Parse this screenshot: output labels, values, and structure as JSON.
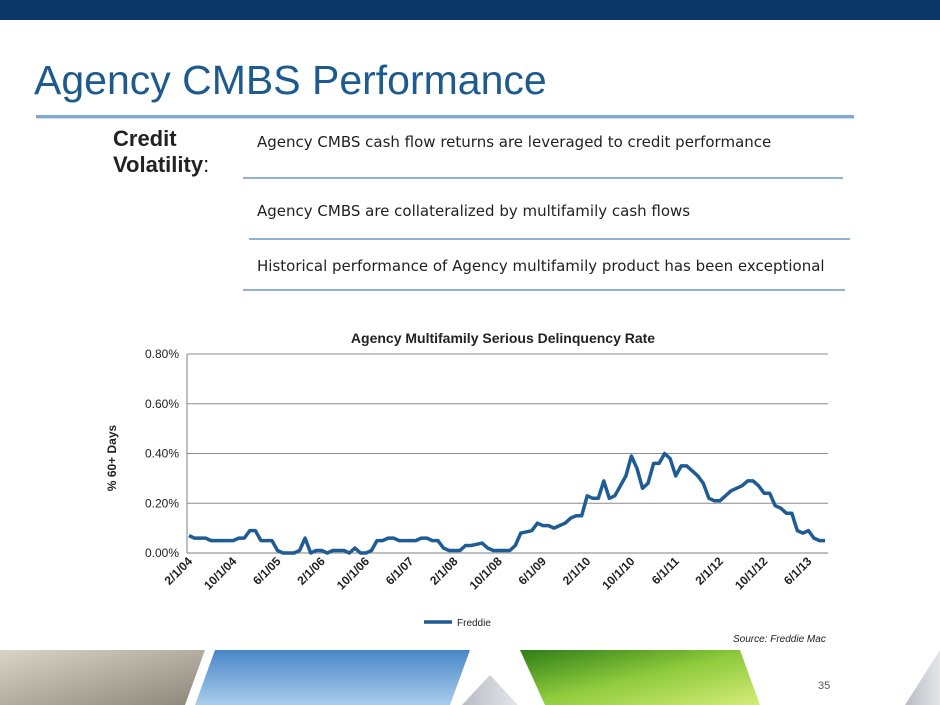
{
  "slide": {
    "title": "Agency CMBS Performance",
    "side_label_line1": "Credit",
    "side_label_line2": "Volatility",
    "side_label_colon": ":",
    "bullets": [
      "Agency CMBS cash flow returns are leveraged to credit performance",
      "Agency CMBS are collateralized by multifamily cash flows",
      "Historical performance of Agency multifamily product has been exceptional"
    ],
    "source": "Source: Freddie Mac",
    "page_number": "35",
    "colors": {
      "top_bar": "#0b3766",
      "title": "#1d5a8e",
      "rule": "#8fb2d3",
      "series": "#1f5b94"
    }
  },
  "chart_data": {
    "type": "line",
    "title": "Agency Multifamily Serious Delinquency Rate",
    "ylabel": "% 60+ Days",
    "xlabel": "",
    "ylim": [
      0,
      0.8
    ],
    "y_ticks": [
      "0.00%",
      "0.20%",
      "0.40%",
      "0.60%",
      "0.80%"
    ],
    "x_tick_labels": [
      "2/1/04",
      "10/1/04",
      "6/1/05",
      "2/1/06",
      "10/1/06",
      "6/1/07",
      "2/1/08",
      "10/1/08",
      "6/1/09",
      "2/1/10",
      "10/1/10",
      "6/1/11",
      "2/1/12",
      "10/1/12",
      "6/1/13"
    ],
    "grid": true,
    "legend": "bottom",
    "series": [
      {
        "name": "Freddie",
        "color": "#1f5b94",
        "x": [
          "2/1/04",
          "3/1/04",
          "4/1/04",
          "5/1/04",
          "6/1/04",
          "7/1/04",
          "8/1/04",
          "9/1/04",
          "10/1/04",
          "11/1/04",
          "12/1/04",
          "1/1/05",
          "2/1/05",
          "3/1/05",
          "4/1/05",
          "5/1/05",
          "6/1/05",
          "7/1/05",
          "8/1/05",
          "9/1/05",
          "10/1/05",
          "11/1/05",
          "12/1/05",
          "1/1/06",
          "2/1/06",
          "3/1/06",
          "4/1/06",
          "5/1/06",
          "6/1/06",
          "7/1/06",
          "8/1/06",
          "9/1/06",
          "10/1/06",
          "11/1/06",
          "12/1/06",
          "1/1/07",
          "2/1/07",
          "3/1/07",
          "4/1/07",
          "5/1/07",
          "6/1/07",
          "7/1/07",
          "8/1/07",
          "9/1/07",
          "10/1/07",
          "11/1/07",
          "12/1/07",
          "1/1/08",
          "2/1/08",
          "3/1/08",
          "4/1/08",
          "5/1/08",
          "6/1/08",
          "7/1/08",
          "8/1/08",
          "9/1/08",
          "10/1/08",
          "11/1/08",
          "12/1/08",
          "1/1/09",
          "2/1/09",
          "3/1/09",
          "4/1/09",
          "5/1/09",
          "6/1/09",
          "7/1/09",
          "8/1/09",
          "9/1/09",
          "10/1/09",
          "11/1/09",
          "12/1/09",
          "1/1/10",
          "2/1/10",
          "3/1/10",
          "4/1/10",
          "5/1/10",
          "6/1/10",
          "7/1/10",
          "8/1/10",
          "9/1/10",
          "10/1/10",
          "11/1/10",
          "12/1/10",
          "1/1/11",
          "2/1/11",
          "3/1/11",
          "4/1/11",
          "5/1/11",
          "6/1/11",
          "7/1/11",
          "8/1/11",
          "9/1/11",
          "10/1/11",
          "11/1/11",
          "12/1/11",
          "1/1/12",
          "2/1/12",
          "3/1/12",
          "4/1/12",
          "5/1/12",
          "6/1/12",
          "7/1/12",
          "8/1/12",
          "9/1/12",
          "10/1/12",
          "11/1/12",
          "12/1/12",
          "1/1/13",
          "2/1/13",
          "3/1/13",
          "4/1/13",
          "5/1/13",
          "6/1/13",
          "7/1/13",
          "8/1/13",
          "9/1/13"
        ],
        "values": [
          0.07,
          0.06,
          0.06,
          0.06,
          0.05,
          0.05,
          0.05,
          0.05,
          0.05,
          0.06,
          0.06,
          0.09,
          0.09,
          0.05,
          0.05,
          0.05,
          0.01,
          0.0,
          0.0,
          0.0,
          0.01,
          0.06,
          0.0,
          0.01,
          0.01,
          0.0,
          0.01,
          0.01,
          0.01,
          0.0,
          0.02,
          0.0,
          0.0,
          0.01,
          0.05,
          0.05,
          0.06,
          0.06,
          0.05,
          0.05,
          0.05,
          0.05,
          0.06,
          0.06,
          0.05,
          0.05,
          0.02,
          0.01,
          0.01,
          0.01,
          0.03,
          0.03,
          0.035,
          0.04,
          0.02,
          0.01,
          0.01,
          0.01,
          0.01,
          0.03,
          0.08,
          0.085,
          0.09,
          0.12,
          0.11,
          0.11,
          0.1,
          0.11,
          0.12,
          0.14,
          0.15,
          0.15,
          0.23,
          0.22,
          0.22,
          0.29,
          0.22,
          0.23,
          0.27,
          0.31,
          0.39,
          0.34,
          0.26,
          0.28,
          0.36,
          0.36,
          0.4,
          0.38,
          0.31,
          0.35,
          0.35,
          0.33,
          0.31,
          0.28,
          0.22,
          0.21,
          0.21,
          0.23,
          0.25,
          0.26,
          0.27,
          0.29,
          0.29,
          0.27,
          0.24,
          0.24,
          0.19,
          0.18,
          0.16,
          0.16,
          0.09,
          0.08,
          0.09,
          0.06,
          0.05,
          0.05
        ]
      }
    ]
  }
}
